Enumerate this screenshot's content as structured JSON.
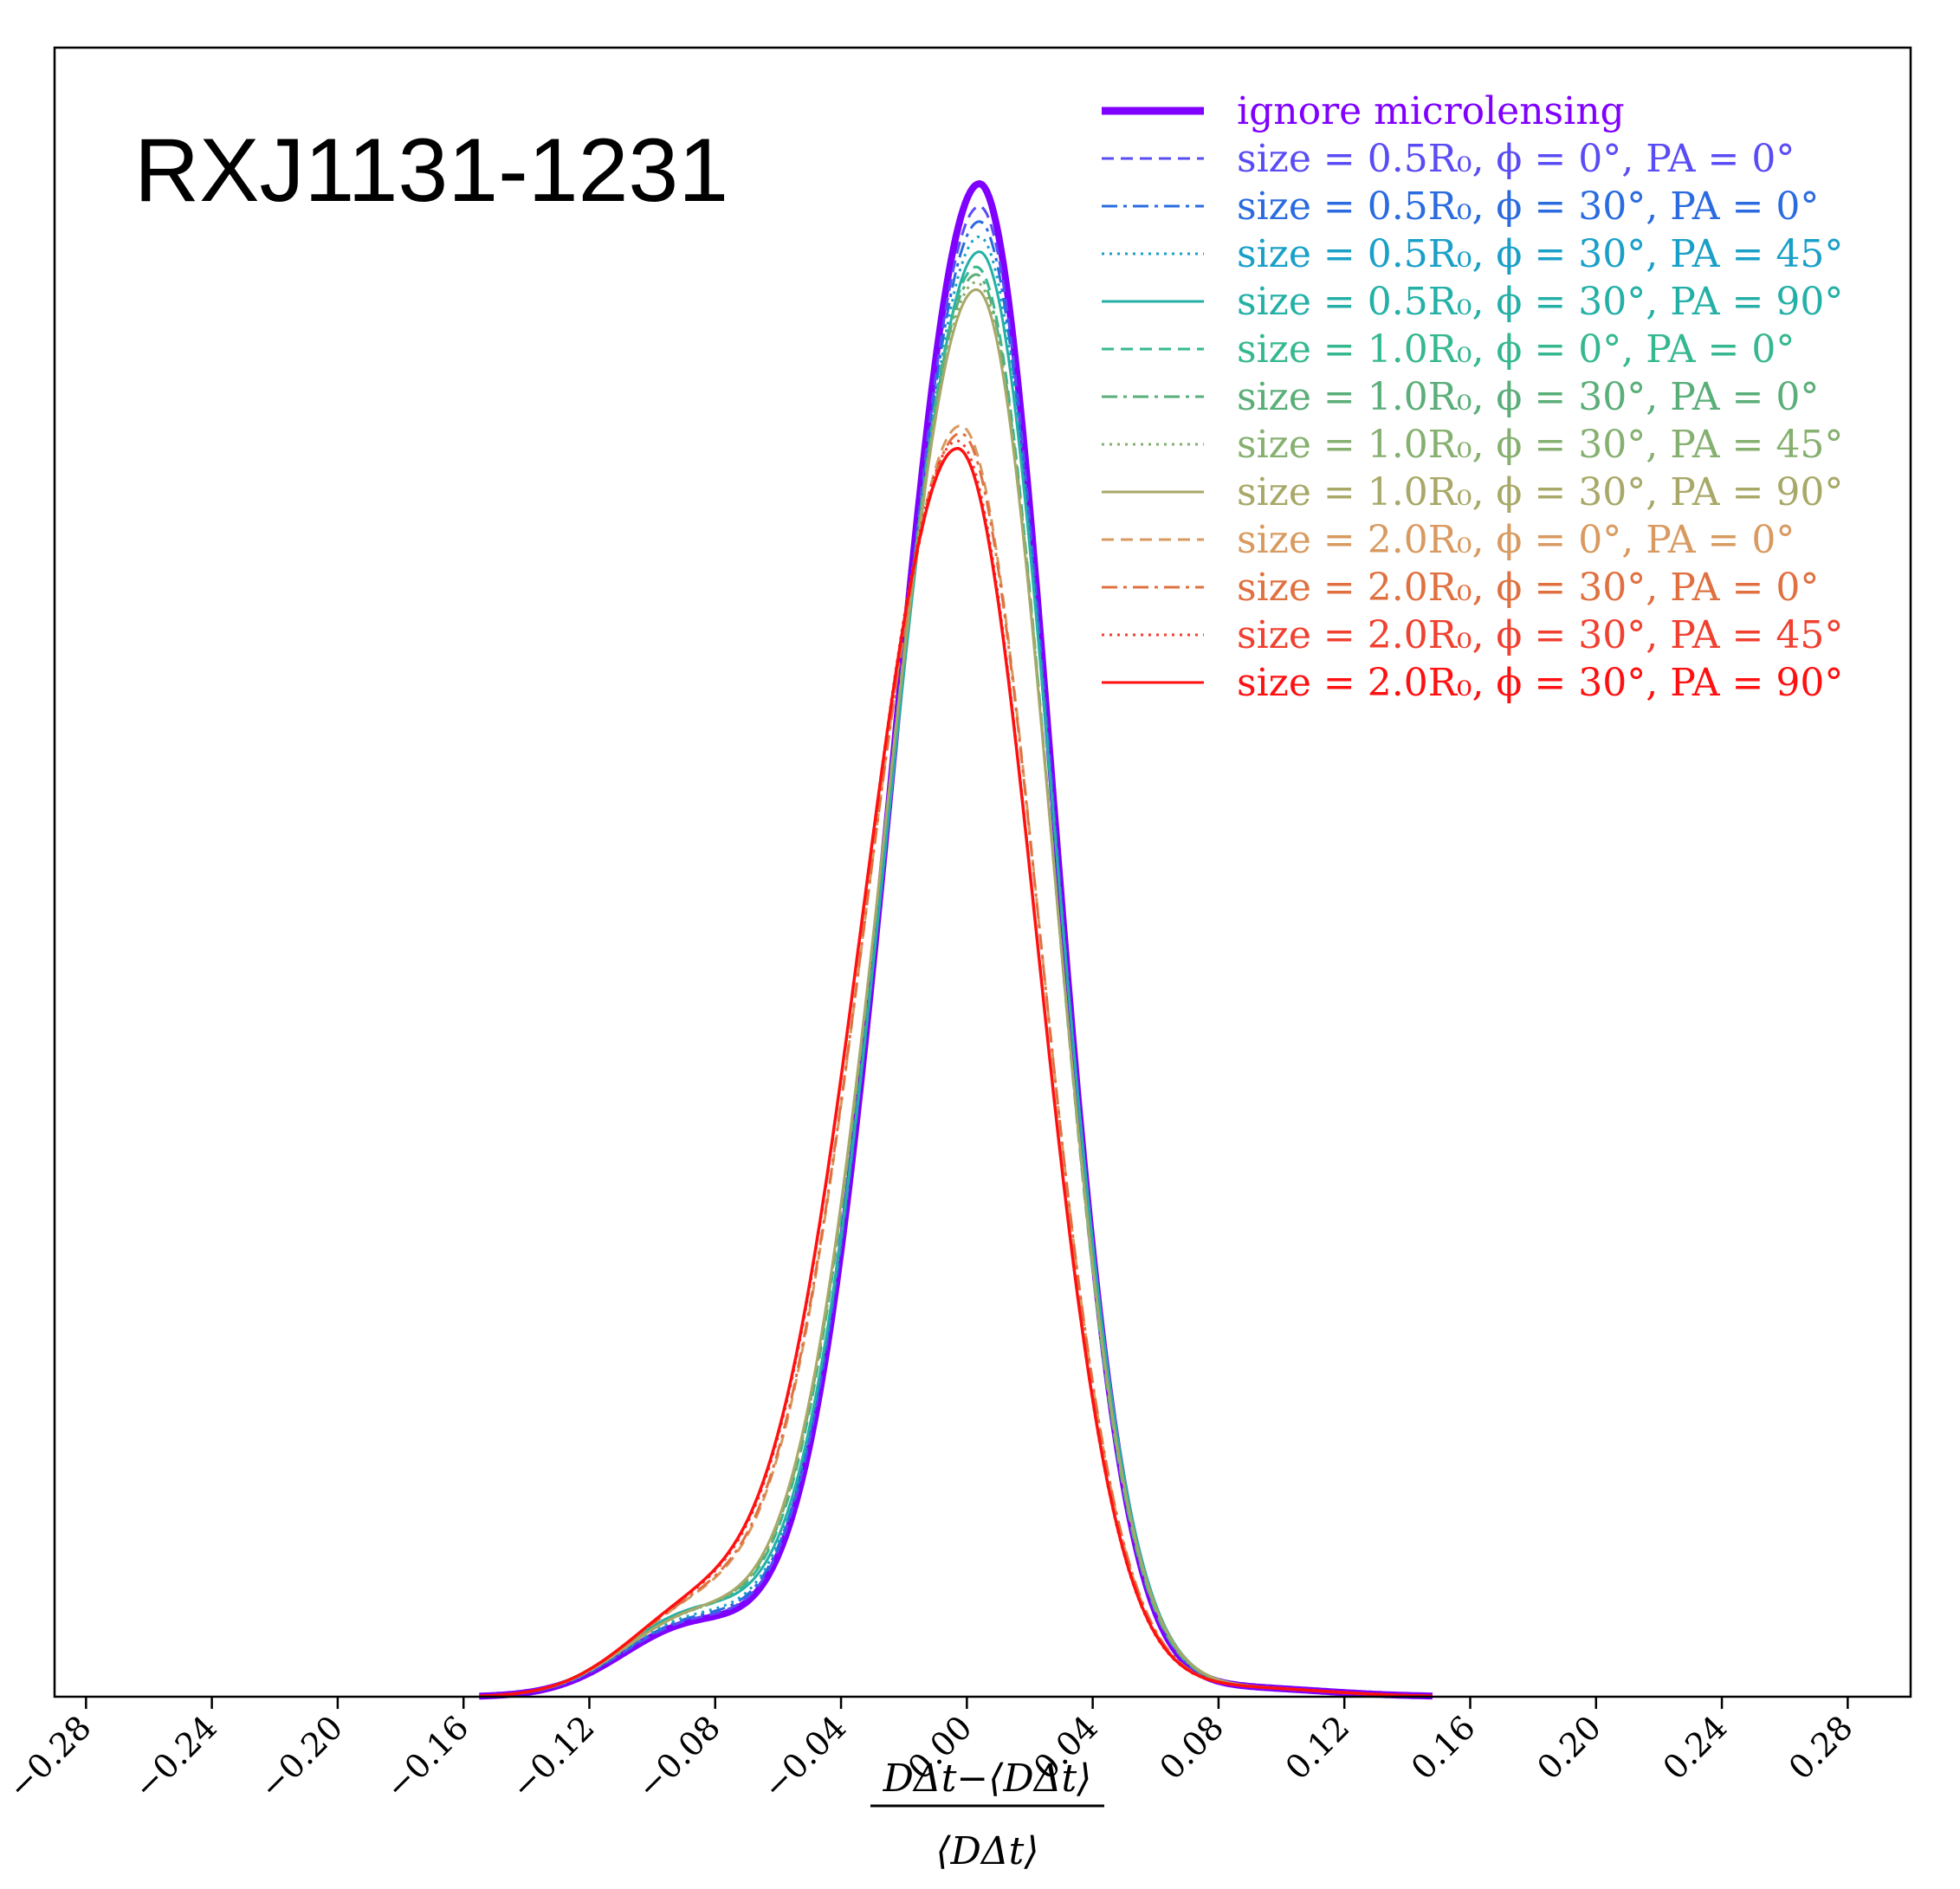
{
  "chart_data": {
    "type": "line",
    "title": "RXJ1131-1231",
    "xlabel": {
      "numerator": "DΔt−⟨DΔt⟩",
      "denominator": "⟨DΔt⟩"
    },
    "ylabel": "",
    "xlim": [
      -0.29,
      0.3
    ],
    "ylim": [
      0,
      1.09
    ],
    "grid": false,
    "legend_position": "top-right",
    "x_ticks": [
      -0.28,
      -0.24,
      -0.2,
      -0.16,
      -0.12,
      -0.08,
      -0.04,
      0.0,
      0.04,
      0.08,
      0.12,
      0.16,
      0.2,
      0.24,
      0.28
    ],
    "x_tick_labels": [
      "−0.28",
      "−0.24",
      "−0.20",
      "−0.16",
      "−0.12",
      "−0.08",
      "−0.04",
      "0.00",
      "0.04",
      "0.08",
      "0.12",
      "0.16",
      "0.20",
      "0.24",
      "0.28"
    ],
    "series": [
      {
        "name": "ignore microlensing",
        "color": "#7f00ff",
        "style": "solid",
        "width": 8,
        "peak": 1.0,
        "mu": 0.004,
        "sl": 0.028,
        "sr": 0.023,
        "shoulder": 0.045
      },
      {
        "name": "size = 0.5R₀, ϕ = 0°,   PA = 0°",
        "color": "#5a4cf5",
        "style": "dashed",
        "width": 3,
        "peak": 0.985,
        "mu": 0.004,
        "sl": 0.0283,
        "sr": 0.0232,
        "shoulder": 0.046
      },
      {
        "name": "size = 0.5R₀, ϕ = 30°, PA = 0°",
        "color": "#2a6be0",
        "style": "dashdot",
        "width": 3,
        "peak": 0.975,
        "mu": 0.004,
        "sl": 0.0285,
        "sr": 0.0233,
        "shoulder": 0.047
      },
      {
        "name": "size = 0.5R₀, ϕ = 30°, PA = 45°",
        "color": "#1aa0c8",
        "style": "dotted",
        "width": 3,
        "peak": 0.965,
        "mu": 0.004,
        "sl": 0.0287,
        "sr": 0.0235,
        "shoulder": 0.048
      },
      {
        "name": "size = 0.5R₀, ϕ = 30°, PA = 90°",
        "color": "#24b0a6",
        "style": "solid",
        "width": 3,
        "peak": 0.955,
        "mu": 0.004,
        "sl": 0.0289,
        "sr": 0.0236,
        "shoulder": 0.052
      },
      {
        "name": "size = 1.0R₀, ϕ = 0°,   PA = 0°",
        "color": "#35b890",
        "style": "dashed",
        "width": 3,
        "peak": 0.945,
        "mu": 0.003,
        "sl": 0.029,
        "sr": 0.0237,
        "shoulder": 0.05
      },
      {
        "name": "size = 1.0R₀, ϕ = 30°, PA = 0°",
        "color": "#5aae78",
        "style": "dashdot",
        "width": 3,
        "peak": 0.94,
        "mu": 0.003,
        "sl": 0.0292,
        "sr": 0.0238,
        "shoulder": 0.05
      },
      {
        "name": "size = 1.0R₀, ϕ = 30°, PA = 45°",
        "color": "#86b070",
        "style": "dotted",
        "width": 3,
        "peak": 0.935,
        "mu": 0.003,
        "sl": 0.0293,
        "sr": 0.0239,
        "shoulder": 0.049
      },
      {
        "name": "size = 1.0R₀, ϕ = 30°, PA = 90°",
        "color": "#a8a868",
        "style": "solid",
        "width": 3,
        "peak": 0.93,
        "mu": 0.003,
        "sl": 0.0295,
        "sr": 0.024,
        "shoulder": 0.049
      },
      {
        "name": "size = 2.0R₀, ϕ = 0°,   PA = 0°",
        "color": "#d89a60",
        "style": "dashed",
        "width": 3,
        "peak": 0.84,
        "mu": -0.002,
        "sl": 0.0305,
        "sr": 0.025,
        "shoulder": 0.05
      },
      {
        "name": "size = 2.0R₀, ϕ = 30°, PA = 0°",
        "color": "#e07040",
        "style": "dashdot",
        "width": 3,
        "peak": 0.835,
        "mu": -0.002,
        "sl": 0.0307,
        "sr": 0.0251,
        "shoulder": 0.05
      },
      {
        "name": "size = 2.0R₀, ϕ = 30°, PA = 45°",
        "color": "#f04030",
        "style": "dotted",
        "width": 3,
        "peak": 0.83,
        "mu": -0.003,
        "sl": 0.0308,
        "sr": 0.0252,
        "shoulder": 0.05
      },
      {
        "name": "size = 2.0R₀, ϕ = 30°, PA = 90°",
        "color": "#ff1010",
        "style": "solid",
        "width": 3.5,
        "peak": 0.825,
        "mu": -0.003,
        "sl": 0.031,
        "sr": 0.0253,
        "shoulder": 0.05
      }
    ]
  }
}
